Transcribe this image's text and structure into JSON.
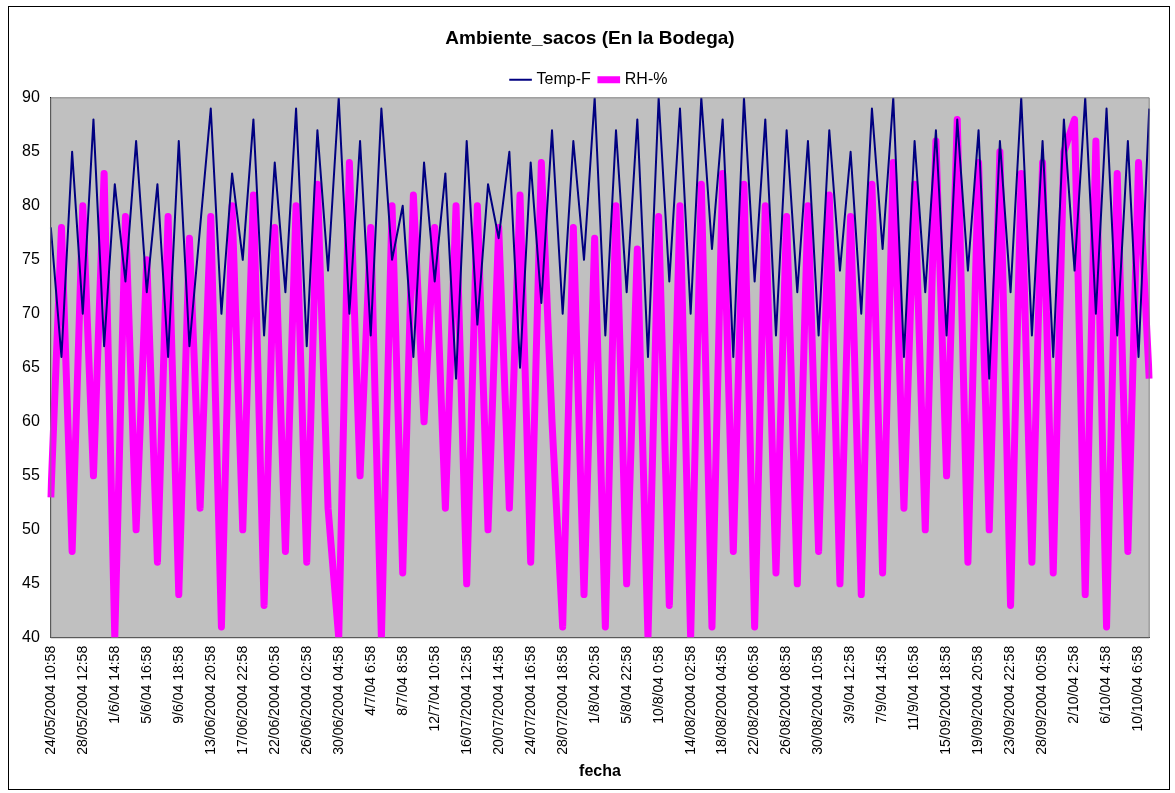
{
  "chart_data": {
    "type": "line",
    "title": "Ambiente_sacos (En la Bodega)",
    "xlabel": "fecha",
    "legend": "top",
    "grid": false,
    "categories": [
      "24/05/2004 10:58",
      null,
      null,
      "28/05/2004 12:58",
      null,
      null,
      "1/6/04 14:58",
      null,
      null,
      "5/6/04 16:58",
      null,
      null,
      "9/6/04 18:58",
      null,
      null,
      "13/06/2004 20:58",
      null,
      null,
      "17/06/2004 22:58",
      null,
      null,
      "22/06/2004 00:58",
      null,
      null,
      "26/06/2004 02:58",
      null,
      null,
      "30/06/2004 04:58",
      null,
      null,
      "4/7/04 6:58",
      null,
      null,
      "8/7/04 8:58",
      null,
      null,
      "12/7/04 10:58",
      null,
      null,
      "16/07/2004 12:58",
      null,
      null,
      "20/07/2004 14:58",
      null,
      null,
      "24/07/2004 16:58",
      null,
      null,
      "28/07/2004 18:58",
      null,
      null,
      "1/8/04 20:58",
      null,
      null,
      "5/8/04 22:58",
      null,
      null,
      "10/8/04 0:58",
      null,
      null,
      "14/08/2004 02:58",
      null,
      null,
      "18/08/2004 04:58",
      null,
      null,
      "22/08/2004 06:58",
      null,
      null,
      "26/08/2004 08:58",
      null,
      null,
      "30/08/2004 10:58",
      null,
      null,
      "3/9/04 12:58",
      null,
      null,
      "7/9/04 14:58",
      null,
      null,
      "11/9/04 16:58",
      null,
      null,
      "15/09/2004 18:58",
      null,
      null,
      "19/09/2004 20:58",
      null,
      null,
      "23/09/2004 22:58",
      null,
      null,
      "28/09/2004 00:58",
      null,
      null,
      "2/10/04 2:58",
      null,
      null,
      "6/10/04 4:58",
      null,
      null,
      "10/10/04 6:58",
      null
    ],
    "series": [
      {
        "name": "Temp-F",
        "color": "#000080",
        "values": [
          78,
          66,
          85,
          70,
          88,
          67,
          82,
          73,
          86,
          72,
          82,
          66,
          86,
          67,
          78,
          89,
          70,
          83,
          75,
          88,
          68,
          84,
          72,
          89,
          67,
          87,
          74,
          90,
          70,
          86,
          68,
          89,
          75,
          80,
          66,
          84,
          73,
          83,
          64,
          86,
          69,
          82,
          77,
          85,
          65,
          84,
          71,
          87,
          70,
          86,
          75,
          90,
          68,
          87,
          72,
          88,
          66,
          90,
          73,
          89,
          70,
          90,
          76,
          88,
          66,
          90,
          73,
          88,
          68,
          87,
          72,
          86,
          68,
          87,
          74,
          85,
          70,
          89,
          76,
          90,
          66,
          86,
          72,
          87,
          68,
          88,
          74,
          87,
          64,
          86,
          72,
          90,
          68,
          86,
          66,
          88,
          74,
          90,
          70,
          89,
          68,
          86,
          66,
          89
        ]
      },
      {
        "name": "RH-%",
        "color": "#ff00ff",
        "values": [
          53,
          78,
          48,
          80,
          55,
          83,
          40,
          79,
          50,
          75,
          47,
          79,
          44,
          77,
          52,
          79,
          41,
          80,
          50,
          81,
          43,
          78,
          48,
          80,
          47,
          82,
          52,
          40,
          84,
          55,
          78,
          40,
          80,
          46,
          81,
          60,
          78,
          52,
          80,
          45,
          80,
          50,
          78,
          52,
          81,
          47,
          84,
          60,
          41,
          78,
          44,
          77,
          41,
          80,
          45,
          76,
          40,
          79,
          43,
          80,
          40,
          82,
          41,
          83,
          48,
          82,
          41,
          80,
          46,
          79,
          45,
          80,
          48,
          81,
          45,
          79,
          44,
          82,
          46,
          84,
          52,
          82,
          50,
          86,
          55,
          88,
          47,
          84,
          50,
          85,
          43,
          83,
          47,
          84,
          46,
          85,
          88,
          44,
          86,
          41,
          83,
          48,
          84,
          64
        ]
      }
    ],
    "ylim": [
      40,
      90
    ],
    "yticks": [
      40,
      45,
      50,
      55,
      60,
      65,
      70,
      75,
      80,
      85,
      90
    ]
  }
}
